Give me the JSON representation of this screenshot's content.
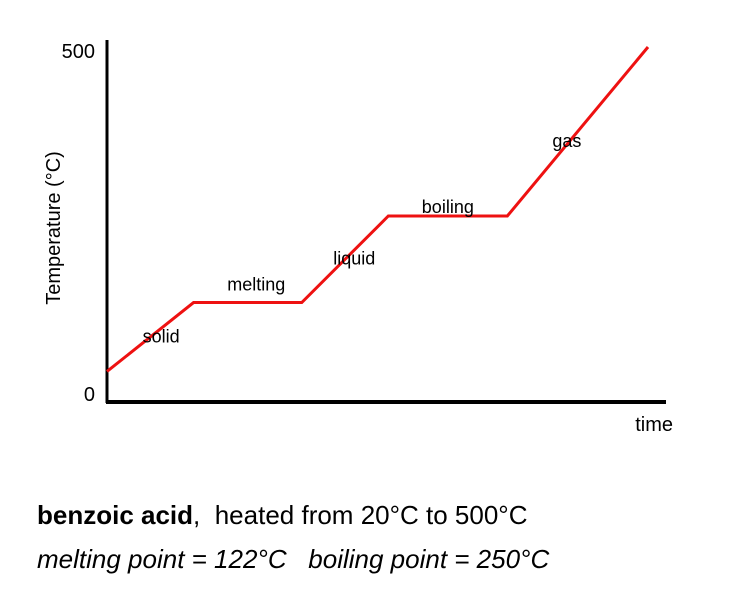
{
  "chart_data": {
    "type": "line",
    "title": "",
    "xlabel": "time",
    "ylabel": "Temperature (°C)",
    "ylim": [
      0,
      500
    ],
    "xlim": [
      0,
      10
    ],
    "yticks": [
      "0",
      "500"
    ],
    "grid": false,
    "series": [
      {
        "name": "benzoic acid",
        "color": "#ee1111",
        "x": [
          0,
          1.6,
          3.6,
          5.2,
          7.4,
          10
        ],
        "y": [
          20,
          122,
          122,
          250,
          250,
          500
        ]
      }
    ],
    "annotations": [
      {
        "text": "solid",
        "x": 1.0,
        "y": 72
      },
      {
        "text": "melting",
        "x": 2.76,
        "y": 149
      },
      {
        "text": "liquid",
        "x": 4.57,
        "y": 187
      },
      {
        "text": "boiling",
        "x": 6.3,
        "y": 263
      },
      {
        "text": "gas",
        "x": 8.5,
        "y": 361
      }
    ]
  },
  "caption": {
    "substance": "benzoic acid",
    "description": ",  heated from 20°C to 500°C",
    "line2": "melting point = 122°C   boiling point = 250°C"
  }
}
